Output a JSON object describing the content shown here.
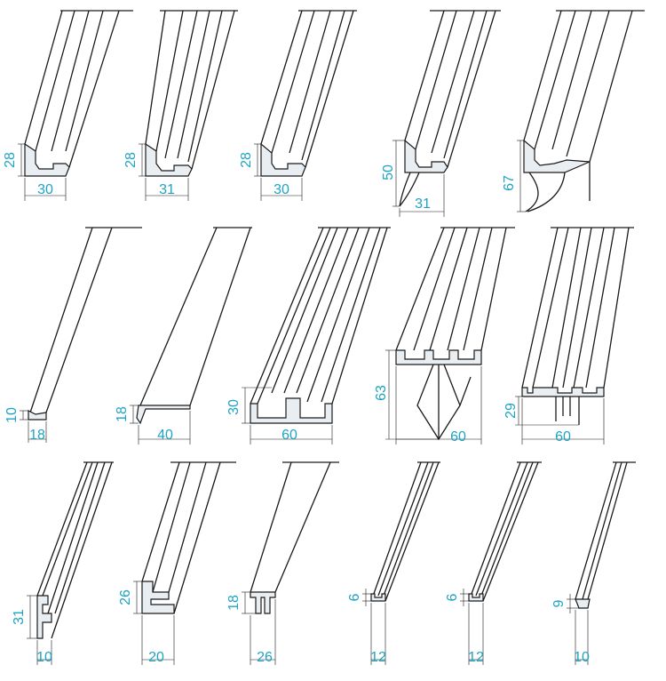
{
  "accent_color": "#1fa3c4",
  "line_color": "#1a1a1a",
  "profiles": [
    {
      "id": "p1",
      "height": "28",
      "width": "30"
    },
    {
      "id": "p2",
      "height": "28",
      "width": "31"
    },
    {
      "id": "p3",
      "height": "28",
      "width": "30"
    },
    {
      "id": "p4",
      "height": "50",
      "width": "31"
    },
    {
      "id": "p5",
      "height": "67",
      "width": ""
    },
    {
      "id": "p6",
      "height": "10",
      "width": "18"
    },
    {
      "id": "p7",
      "height": "18",
      "width": "40"
    },
    {
      "id": "p8",
      "height": "30",
      "width": "60"
    },
    {
      "id": "p9",
      "height": "63",
      "width": "60"
    },
    {
      "id": "p10",
      "height": "29",
      "width": "60"
    },
    {
      "id": "p11",
      "height": "31",
      "width": "10"
    },
    {
      "id": "p12",
      "height": "26",
      "width": "20"
    },
    {
      "id": "p13",
      "height": "18",
      "width": "26"
    },
    {
      "id": "p14",
      "height": "6",
      "width": "12"
    },
    {
      "id": "p15",
      "height": "6",
      "width": "12"
    },
    {
      "id": "p16",
      "height": "9",
      "width": "10"
    }
  ]
}
